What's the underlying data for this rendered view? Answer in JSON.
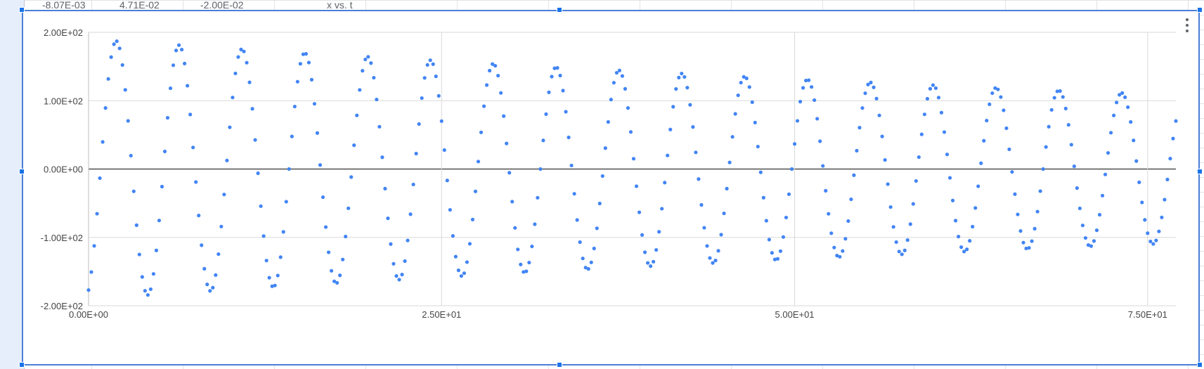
{
  "sheet": {
    "visible_title_fragment": "x vs. t",
    "top_row_cells": [
      "-8.07E-03",
      "4.71E-02",
      "-2.00E-02"
    ]
  },
  "menu": {
    "icon": "more-vert-icon"
  },
  "colors": {
    "points": "#4285f4",
    "grid": "#d9d9d9",
    "zero_line": "#333333",
    "selection": "#4a7fd6"
  },
  "chart_data": {
    "type": "scatter",
    "title": "",
    "xlabel": "",
    "ylabel": "",
    "xlim": [
      0,
      77
    ],
    "ylim": [
      -200,
      200
    ],
    "x_ticks": [
      0,
      25,
      50,
      75
    ],
    "x_tick_labels": [
      "0.00E+00",
      "2.50E+01",
      "5.00E+01",
      "7.50E+01"
    ],
    "y_ticks": [
      200,
      100,
      0,
      -100,
      -200
    ],
    "y_tick_labels": [
      "2.00E+02",
      "1.00E+02",
      "0.00E+00",
      "-1.00E+02",
      "-2.00E+02"
    ],
    "grid": true,
    "legend": "none",
    "series": [
      {
        "model": "damped-sine",
        "amplitude": 190,
        "decay": 0.0073,
        "period": 4.45,
        "phase": -1.2,
        "x_start": 0,
        "x_end": 77,
        "dx": 0.2
      }
    ]
  }
}
